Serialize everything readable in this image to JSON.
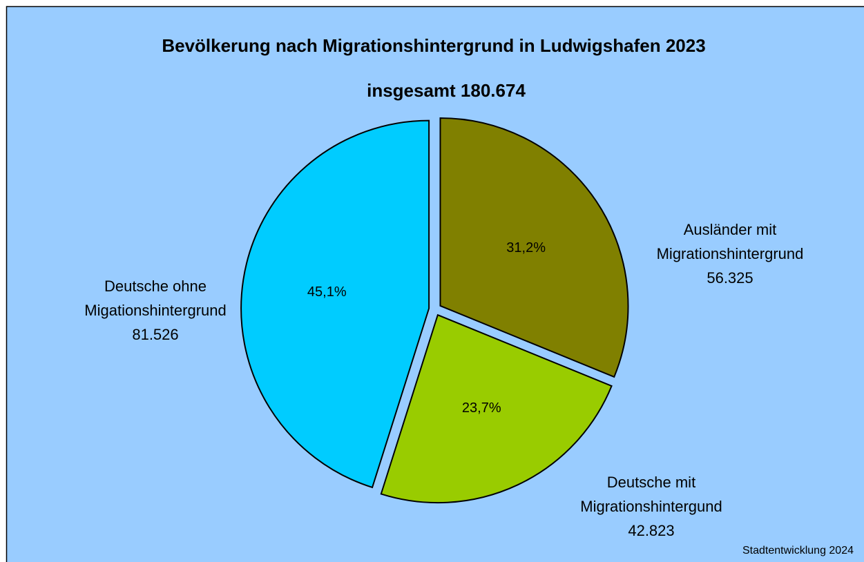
{
  "chart_data": {
    "type": "pie",
    "title": "Bevölkerung nach Migrationshintergrund in Ludwigshafen 2023",
    "subtitle": "insgesamt 180.674",
    "source": "Stadtentwicklung 2024",
    "categories": [
      [
        "Ausländer mit",
        "Migrationshintergrund"
      ],
      [
        "Deutsche mit",
        "Migrationshintergund"
      ],
      [
        "Deutsche ohne",
        "Migationshintergrund"
      ]
    ],
    "values": [
      56325,
      42823,
      81526
    ],
    "value_labels": [
      "56.325",
      "42.823",
      "81.526"
    ],
    "percentages": [
      31.2,
      23.7,
      45.1
    ],
    "percentage_labels": [
      "31,2%",
      "23,7%",
      "45,1%"
    ],
    "colors": [
      "#808000",
      "#99cc00",
      "#00ccff"
    ]
  }
}
